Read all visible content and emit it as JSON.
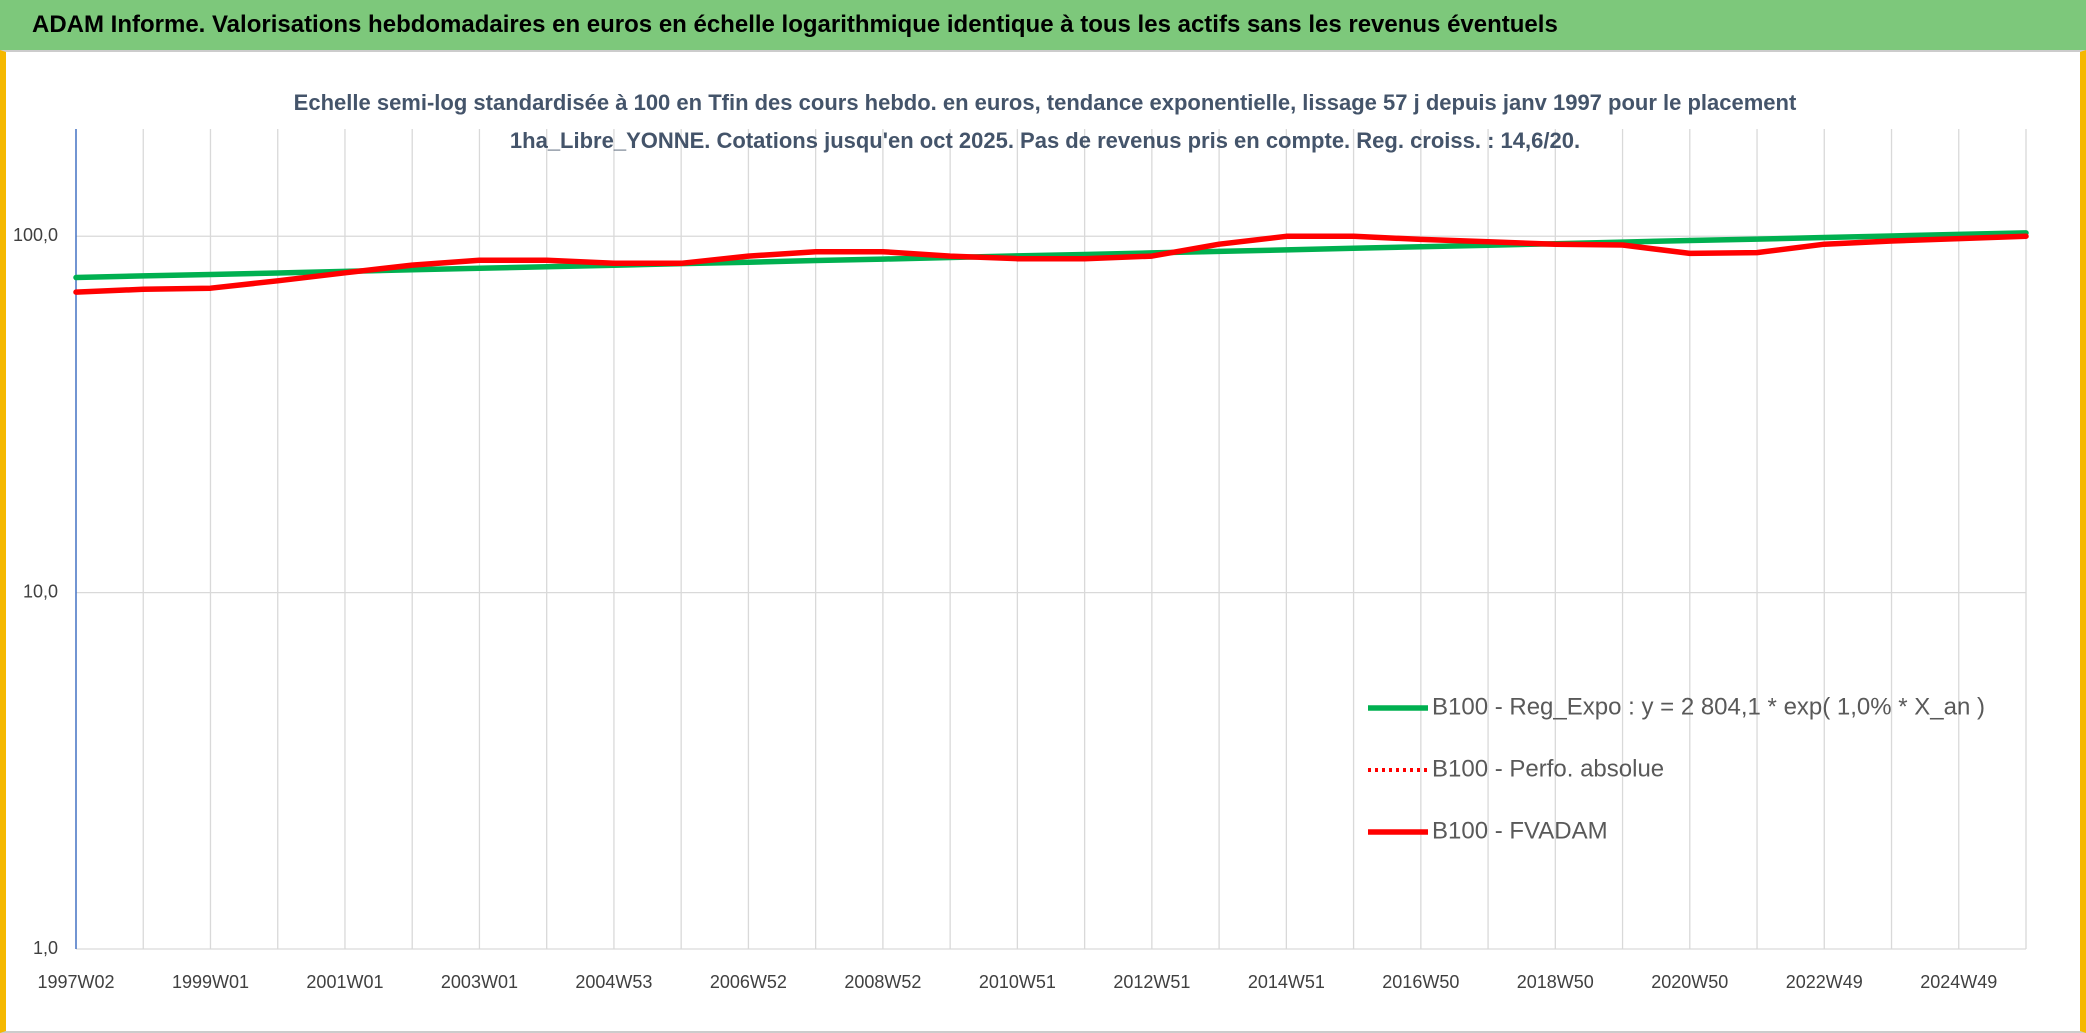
{
  "chart_data": {
    "type": "line",
    "title": "ADAM Informe. Valorisations hebdomadaires en euros en échelle logarithmique identique à tous les actifs sans les revenus éventuels",
    "subtitle": "Echelle semi-log standardisée à 100 en Tfin des cours hebdo. en euros, tendance exponentielle, lissage 57 j depuis janv 1997 pour le placement 1ha_Libre_YONNE. Cotations jusqu'en oct 2025. Pas de revenus pris en compte. Reg. croiss. : 14,6/20.",
    "categories": [
      "1997W02",
      null,
      "1999W01",
      null,
      "2001W01",
      null,
      "2003W01",
      null,
      "2004W53",
      null,
      "2006W52",
      null,
      "2008W52",
      null,
      "2010W51",
      null,
      "2012W51",
      null,
      "2014W51",
      null,
      "2016W50",
      null,
      "2018W50",
      null,
      "2020W50",
      null,
      "2022W49",
      null,
      "2024W49",
      null
    ],
    "log_y": true,
    "grid": true,
    "legend": "right",
    "ylim": [
      1,
      200
    ],
    "yticks": [
      {
        "value": 1,
        "label": "1,0"
      },
      {
        "value": 10,
        "label": "10,0"
      },
      {
        "value": 100,
        "label": "100,0"
      }
    ],
    "series": [
      {
        "name": "B100 - Reg_Expo : y = 2 804,1 * exp( 1,0% *  X_an )",
        "color": "#00b050",
        "style": "solid",
        "values": [
          76.6,
          77.4,
          78.1,
          78.9,
          79.7,
          80.5,
          81.3,
          82.1,
          82.9,
          83.8,
          84.6,
          85.5,
          86.3,
          87.2,
          88.1,
          88.9,
          89.8,
          90.7,
          91.6,
          92.5,
          93.5,
          94.4,
          95.3,
          96.3,
          97.3,
          98.2,
          99.2,
          100.2,
          101.2,
          102.2
        ]
      },
      {
        "name": "B100 - Perfo. absolue",
        "color": "#ff0000",
        "style": "dotted",
        "values": [
          69.7,
          71,
          71.5,
          75,
          79,
          83,
          85.7,
          85.7,
          84,
          84,
          88,
          90.5,
          90.5,
          88,
          86.5,
          86.5,
          88,
          95,
          100,
          100,
          98,
          96.5,
          95,
          94.5,
          89.5,
          90,
          95,
          97,
          98.5,
          100
        ]
      },
      {
        "name": "B100 - FVADAM",
        "color": "#ff0000",
        "style": "solid",
        "values": [
          69.7,
          71,
          71.5,
          75,
          79,
          83,
          85.7,
          85.7,
          84,
          84,
          88,
          90.5,
          90.5,
          88,
          86.5,
          86.5,
          88,
          95,
          100,
          100,
          98,
          96.5,
          95,
          94.5,
          89.5,
          90,
          95,
          97,
          98.5,
          100
        ]
      }
    ]
  }
}
